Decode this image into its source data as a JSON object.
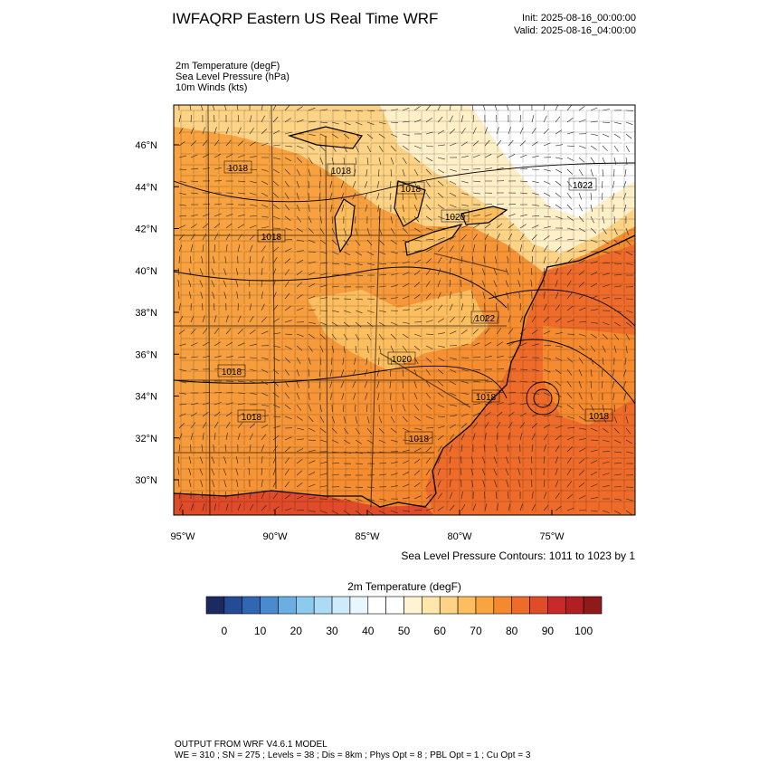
{
  "header": {
    "title": "IWFAQRP Eastern US Real Time WRF",
    "init": "Init: 2025-08-16_00:00:00",
    "valid": "Valid: 2025-08-16_04:00:00"
  },
  "fields": [
    "2m Temperature   (degF)",
    "Sea Level Pressure   (hPa)",
    "10m Winds   (kts)"
  ],
  "map": {
    "lat_labels": [
      "46°N",
      "44°N",
      "42°N",
      "40°N",
      "38°N",
      "36°N",
      "34°N",
      "32°N",
      "30°N"
    ],
    "lon_labels": [
      "95°W",
      "90°W",
      "85°W",
      "80°W",
      "75°W"
    ],
    "contour_labels": [
      "1018",
      "1018",
      "1018",
      "1020",
      "1022",
      "1018",
      "1022",
      "1020",
      "1018",
      "1018",
      "1018",
      "1018",
      "1018"
    ],
    "contour_note": "Sea Level Pressure Contours: 1011 to 1023 by 1"
  },
  "colorbar": {
    "title": "2m Temperature  (degF)",
    "colors": [
      "#1b2b5f",
      "#234c94",
      "#3067b2",
      "#4a8bd0",
      "#6aaee2",
      "#8ccaf0",
      "#acdcf5",
      "#cdebfa",
      "#e8f6fd",
      "#ffffff",
      "#ffffff",
      "#fff3d4",
      "#ffe6ab",
      "#fdd386",
      "#fcbe5e",
      "#f9a43f",
      "#f5892e",
      "#ee6b2a",
      "#e04b2a",
      "#c9292a",
      "#b11f24",
      "#8e1a1a"
    ],
    "ticks": [
      0,
      10,
      20,
      30,
      40,
      50,
      60,
      70,
      80,
      90,
      100
    ]
  },
  "footer": {
    "line1": "OUTPUT FROM WRF V4.6.1 MODEL",
    "line2": "WE = 310 ; SN = 275 ; Levels = 38 ; Dis = 8km ; Phys Opt = 8 ; PBL Opt = 1 ; Cu Opt = 3"
  }
}
